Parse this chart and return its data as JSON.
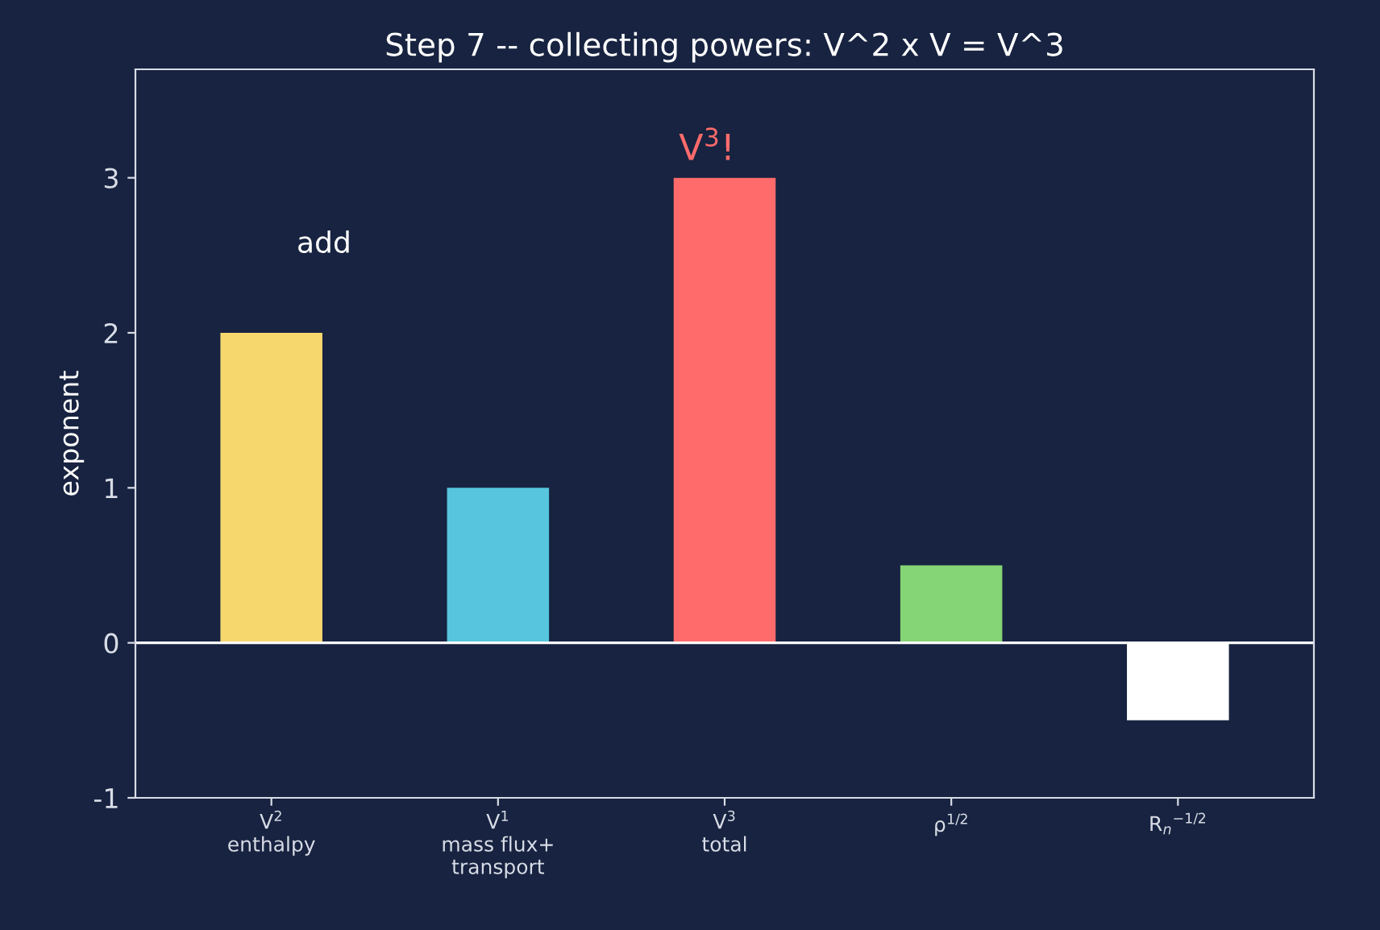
{
  "chart_data": {
    "type": "bar",
    "title": "Step 7 -- collecting powers: V^2 x V = V^3",
    "ylabel": "exponent",
    "categories": [
      "V$^{2}$\nenthalpy",
      "V$^{1}$\nmass flux+\ntransport",
      "V$^{3}$\ntotal",
      "ρ$^{1/2}$",
      "R$_{n}$$^{−1/2}$"
    ],
    "values": [
      2,
      1,
      3,
      0.5,
      -0.5
    ],
    "colors": [
      "#f5d76e",
      "#56c5dd",
      "#ff6b6b",
      "#85d475",
      "#ffffff"
    ],
    "ylim": [
      -1,
      3.7
    ],
    "yticks": [
      -1,
      0,
      1,
      2,
      3
    ],
    "ref_lines": [
      {
        "axis": "y",
        "value": 0,
        "color": "#ffffff"
      }
    ],
    "annotations": [
      "add",
      "V$^{3}$!"
    ],
    "grid": false,
    "legend": false
  }
}
